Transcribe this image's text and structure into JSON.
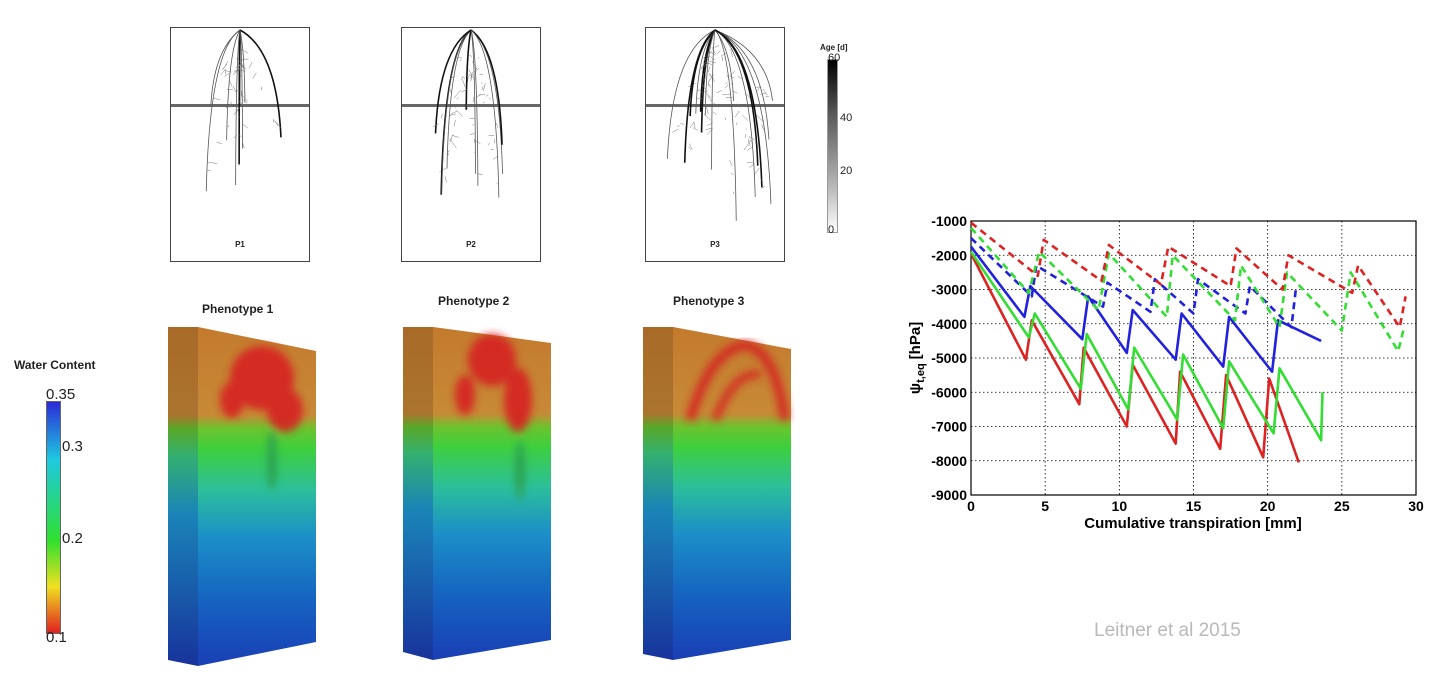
{
  "root_panels": [
    {
      "label": "P1"
    },
    {
      "label": "P2"
    },
    {
      "label": "P3"
    }
  ],
  "age_scale": {
    "title": "Age [d]",
    "ticks": [
      "60",
      "40",
      "20",
      "0"
    ]
  },
  "phenotypes": [
    {
      "title": "Phenotype 1"
    },
    {
      "title": "Phenotype 2"
    },
    {
      "title": "Phenotype 3"
    }
  ],
  "water_content": {
    "title": "Water Content",
    "ticks": [
      "0.35",
      "0.3",
      "0.2",
      "0.1"
    ],
    "colors": [
      "#2b2bd6",
      "#1ec9e0",
      "#2ee02e",
      "#f0e020",
      "#e02020"
    ]
  },
  "citation": "Leitner et al 2015",
  "chart_data": {
    "type": "line",
    "title": "",
    "xlabel": "Cumulative transpiration [mm]",
    "ylabel": "ψ t,eq [hPa]",
    "ylabel_main": "ψ",
    "ylabel_sub": "t,eq",
    "ylabel_unit": "[hPa]",
    "xlim": [
      0,
      30
    ],
    "ylim": [
      -9000,
      -1000
    ],
    "xticks": [
      0,
      5,
      10,
      15,
      20,
      25,
      30
    ],
    "yticks": [
      -1000,
      -2000,
      -3000,
      -4000,
      -5000,
      -6000,
      -7000,
      -8000,
      -9000
    ],
    "grid": true,
    "series": [
      {
        "color": "#dd2222",
        "style": "solid",
        "x": [
          0,
          3.7,
          4.1,
          7.3,
          7.6,
          10.5,
          10.9,
          13.8,
          14.1,
          16.8,
          17.2,
          19.7,
          20.1,
          22.1
        ],
        "y": [
          -1950,
          -5050,
          -3900,
          -6350,
          -4700,
          -7000,
          -5200,
          -7500,
          -5400,
          -7650,
          -5500,
          -7900,
          -5600,
          -8050
        ]
      },
      {
        "color": "#33dd33",
        "style": "solid",
        "x": [
          0,
          3.9,
          4.3,
          7.4,
          7.8,
          10.6,
          11.0,
          13.9,
          14.3,
          17.0,
          17.4,
          20.4,
          20.8,
          23.6,
          23.7
        ],
        "y": [
          -1900,
          -4400,
          -3700,
          -5900,
          -4300,
          -6500,
          -4700,
          -6800,
          -4900,
          -7050,
          -5100,
          -7200,
          -5300,
          -7400,
          -6000
        ]
      },
      {
        "color": "#2222dd",
        "style": "solid",
        "x": [
          0,
          3.6,
          4.0,
          7.5,
          7.9,
          10.5,
          10.9,
          13.8,
          14.2,
          17.0,
          17.4,
          20.3,
          20.7,
          23.6
        ],
        "y": [
          -1750,
          -3800,
          -2900,
          -4450,
          -3200,
          -4850,
          -3600,
          -5050,
          -3700,
          -5250,
          -3800,
          -5400,
          -3900,
          -4500
        ]
      },
      {
        "color": "#2222dd",
        "style": "dashed",
        "x": [
          0,
          4.1,
          4.4,
          8.9,
          9.2,
          12.1,
          12.4,
          15.0,
          15.3,
          18.5,
          18.8,
          21.6,
          21.9
        ],
        "y": [
          -1500,
          -3200,
          -2300,
          -3500,
          -2800,
          -3650,
          -2700,
          -3700,
          -2700,
          -3700,
          -2900,
          -4100,
          -3000
        ]
      },
      {
        "color": "#33dd33",
        "style": "dashed",
        "x": [
          0,
          3.9,
          4.6,
          8.6,
          9.3,
          13.2,
          13.6,
          17.8,
          18.2,
          20.8,
          21.3,
          25.0,
          25.6,
          28.8,
          29.2
        ],
        "y": [
          -1200,
          -3100,
          -1900,
          -3600,
          -1950,
          -3800,
          -2000,
          -3900,
          -2300,
          -4100,
          -2500,
          -4200,
          -2500,
          -4800,
          -4100
        ]
      },
      {
        "color": "#dd2222",
        "style": "dashed",
        "x": [
          0,
          4.5,
          4.9,
          8.8,
          9.3,
          12.8,
          13.3,
          17.5,
          17.9,
          21.0,
          21.4,
          25.7,
          26.1,
          28.9,
          29.3
        ],
        "y": [
          -1050,
          -2600,
          -1550,
          -2750,
          -1700,
          -2850,
          -1750,
          -2900,
          -1800,
          -3000,
          -2000,
          -3100,
          -2300,
          -4100,
          -3200
        ]
      }
    ]
  }
}
